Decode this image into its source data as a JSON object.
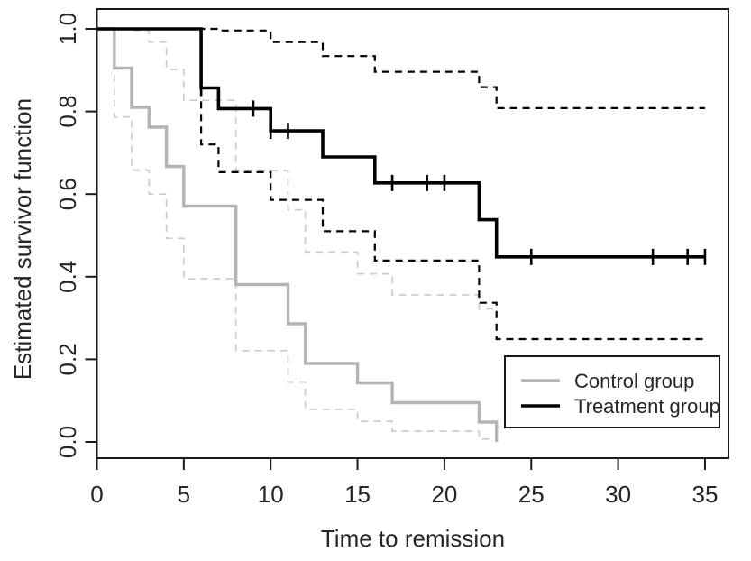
{
  "chart_data": {
    "type": "line",
    "subtype": "kaplan-meier-step",
    "title": "",
    "xlabel": "Time to remission",
    "ylabel": "Estimated survivor function",
    "xlim": [
      0,
      35
    ],
    "ylim": [
      0.0,
      1.0
    ],
    "x_ticks": [
      0,
      5,
      10,
      15,
      20,
      25,
      30,
      35
    ],
    "y_ticks": [
      0.0,
      0.2,
      0.4,
      0.6,
      0.8,
      1.0
    ],
    "grid": false,
    "frame_box": true,
    "colors": {
      "control": "#b4b4b4",
      "control_ci": "#cccccc",
      "treatment": "#000000",
      "treatment_ci": "#000000"
    },
    "series": [
      {
        "name": "Control group 95% CI upper",
        "group": "control",
        "kind": "ci-upper",
        "color": "#cccccc",
        "dashed": true,
        "width": 1.7,
        "end": 23,
        "steps": [
          [
            0,
            1.0
          ],
          [
            1,
            1.0
          ],
          [
            2,
            0.996
          ],
          [
            3,
            0.968
          ],
          [
            4,
            0.902
          ],
          [
            5,
            0.827
          ],
          [
            8,
            0.657
          ],
          [
            11,
            0.562
          ],
          [
            12,
            0.46
          ],
          [
            15,
            0.407
          ],
          [
            17,
            0.356
          ],
          [
            22,
            0.322
          ]
        ]
      },
      {
        "name": "Control group 95% CI lower",
        "group": "control",
        "kind": "ci-lower",
        "color": "#cccccc",
        "dashed": true,
        "width": 1.7,
        "end": 23,
        "steps": [
          [
            0,
            1.0
          ],
          [
            1,
            0.787
          ],
          [
            2,
            0.658
          ],
          [
            3,
            0.6
          ],
          [
            4,
            0.493
          ],
          [
            5,
            0.395
          ],
          [
            8,
            0.221
          ],
          [
            11,
            0.145
          ],
          [
            12,
            0.079
          ],
          [
            15,
            0.05
          ],
          [
            17,
            0.026
          ],
          [
            22,
            0.007
          ]
        ]
      },
      {
        "name": "Control group",
        "group": "control",
        "kind": "survival",
        "color": "#b4b4b4",
        "dashed": false,
        "width": 3.4,
        "end": 23,
        "steps": [
          [
            0,
            1.0
          ],
          [
            1,
            0.905
          ],
          [
            2,
            0.81
          ],
          [
            3,
            0.762
          ],
          [
            4,
            0.667
          ],
          [
            5,
            0.571
          ],
          [
            8,
            0.381
          ],
          [
            11,
            0.286
          ],
          [
            12,
            0.19
          ],
          [
            15,
            0.143
          ],
          [
            17,
            0.095
          ],
          [
            22,
            0.048
          ],
          [
            23,
            0.0
          ]
        ]
      },
      {
        "name": "Treatment group 95% CI upper",
        "group": "treatment",
        "kind": "ci-upper",
        "color": "#000000",
        "dashed": true,
        "width": 2.2,
        "end": 35,
        "steps": [
          [
            0,
            1.0
          ],
          [
            6,
            1.0
          ],
          [
            7,
            0.996
          ],
          [
            10,
            0.968
          ],
          [
            13,
            0.934
          ],
          [
            16,
            0.896
          ],
          [
            22,
            0.859
          ],
          [
            23,
            0.808
          ]
        ]
      },
      {
        "name": "Treatment group 95% CI lower",
        "group": "treatment",
        "kind": "ci-lower",
        "color": "#000000",
        "dashed": true,
        "width": 2.2,
        "end": 35,
        "steps": [
          [
            0,
            1.0
          ],
          [
            6,
            0.72
          ],
          [
            7,
            0.653
          ],
          [
            10,
            0.586
          ],
          [
            13,
            0.51
          ],
          [
            16,
            0.439
          ],
          [
            22,
            0.337
          ],
          [
            23,
            0.249
          ]
        ]
      },
      {
        "name": "Treatment group",
        "group": "treatment",
        "kind": "survival",
        "color": "#000000",
        "dashed": false,
        "width": 3.6,
        "end": 35,
        "steps": [
          [
            0,
            1.0
          ],
          [
            6,
            0.857
          ],
          [
            7,
            0.807
          ],
          [
            10,
            0.753
          ],
          [
            13,
            0.69
          ],
          [
            16,
            0.627
          ],
          [
            22,
            0.538
          ],
          [
            23,
            0.448
          ]
        ],
        "censor_times": [
          6,
          9,
          10,
          11,
          17,
          19,
          20,
          25,
          32,
          34,
          35
        ]
      }
    ],
    "legend": {
      "position": "bottom-right",
      "entries": [
        {
          "label": "Control group",
          "color": "#b4b4b4"
        },
        {
          "label": "Treatment group",
          "color": "#000000"
        }
      ]
    }
  }
}
